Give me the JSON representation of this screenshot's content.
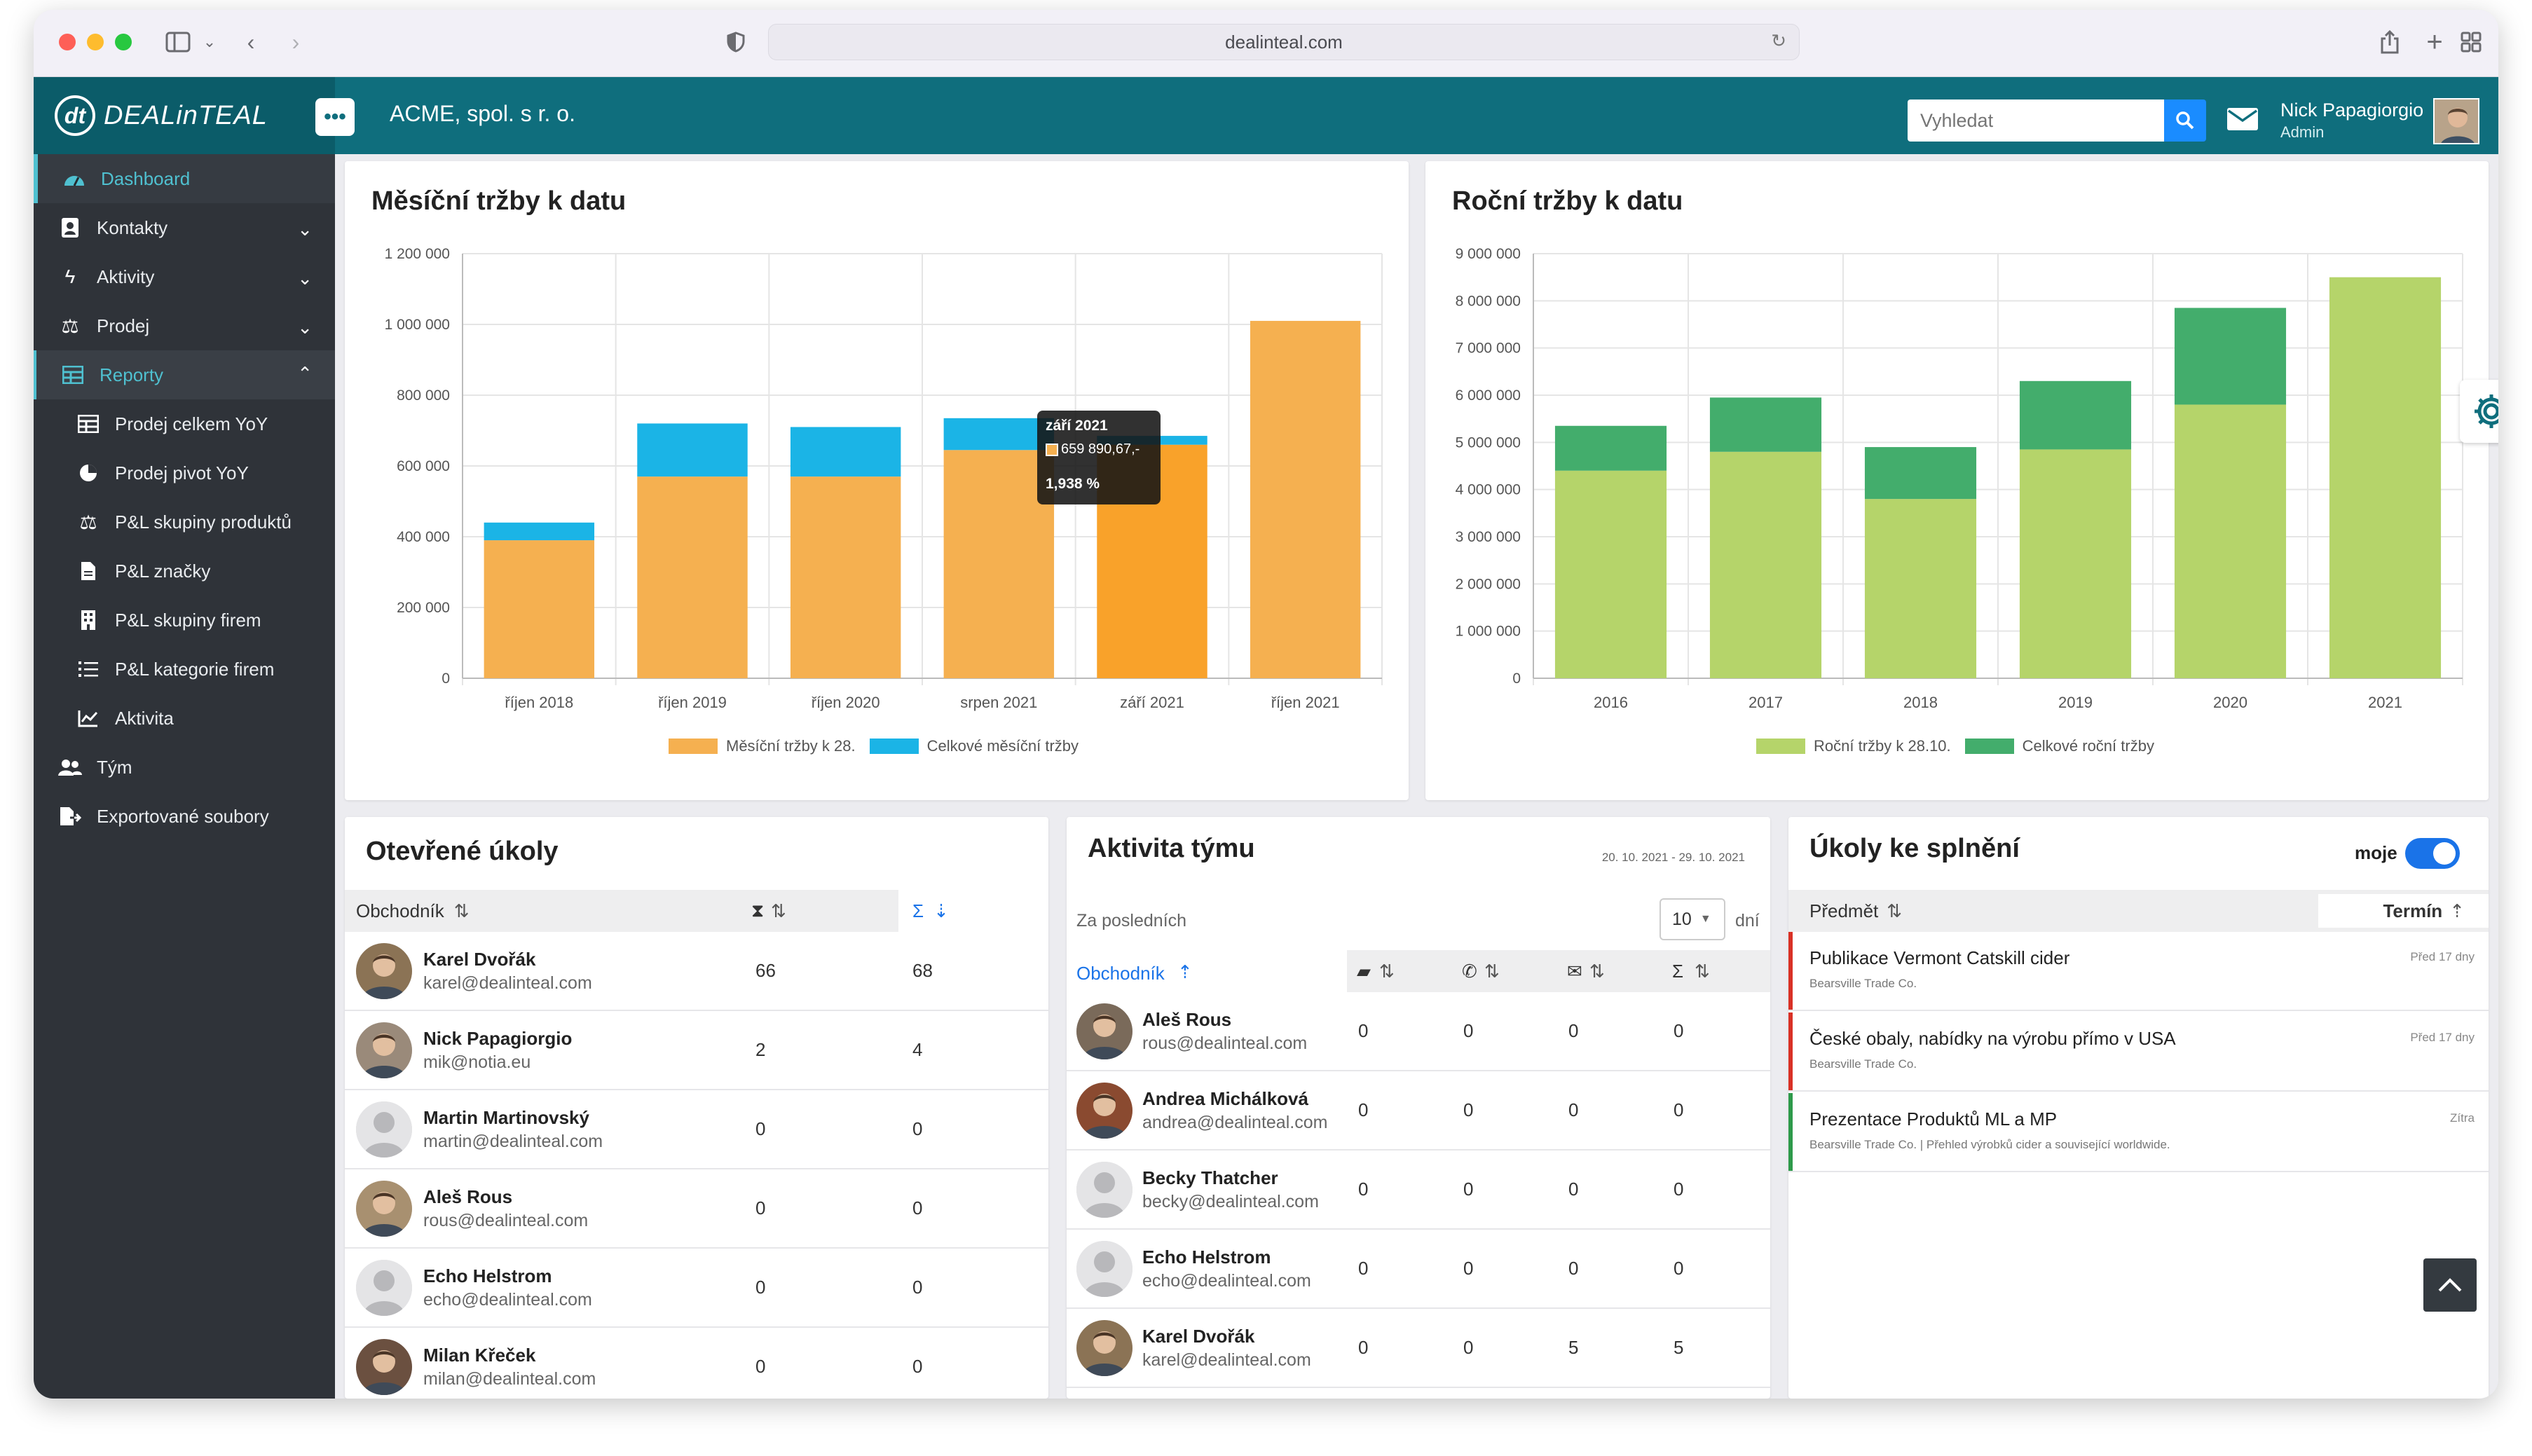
{
  "browser": {
    "url": "dealinteal.com"
  },
  "header": {
    "logo_mark": "dt",
    "logo_text": "DEALinTEAL",
    "menu_label": "•••",
    "company": "ACME, spol. s r. o.",
    "search_placeholder": "Vyhledat",
    "user_name": "Nick Papagiorgio",
    "user_role": "Admin"
  },
  "sidebar": {
    "items": [
      {
        "label": "Dashboard",
        "icon": "dashboard-icon"
      },
      {
        "label": "Kontakty",
        "icon": "contacts-icon"
      },
      {
        "label": "Aktivity",
        "icon": "bolt-icon"
      },
      {
        "label": "Prodej",
        "icon": "scale-icon"
      },
      {
        "label": "Reporty",
        "icon": "table-icon"
      },
      {
        "label": "Prodej celkem YoY",
        "icon": "table-icon"
      },
      {
        "label": "Prodej pivot YoY",
        "icon": "pie-icon"
      },
      {
        "label": "P&L skupiny produktů",
        "icon": "scale-icon"
      },
      {
        "label": "P&L značky",
        "icon": "document-icon"
      },
      {
        "label": "P&L skupiny firem",
        "icon": "building-icon"
      },
      {
        "label": "P&L kategorie firem",
        "icon": "list-icon"
      },
      {
        "label": "Aktivita",
        "icon": "line-chart-icon"
      },
      {
        "label": "Tým",
        "icon": "team-icon"
      },
      {
        "label": "Exportované soubory",
        "icon": "export-icon"
      }
    ]
  },
  "monthly": {
    "title": "Měsíční tržby k datu",
    "tooltip": {
      "title": "září 2021",
      "line1": "659 890,67,-",
      "line2": "1,938 %"
    }
  },
  "yearly": {
    "title": "Roční tržby k datu"
  },
  "chart_data": [
    {
      "type": "bar",
      "stacked": true,
      "title": "Měsíční tržby k datu",
      "categories": [
        "říjen 2018",
        "říjen 2019",
        "říjen 2020",
        "srpen 2021",
        "září 2021",
        "říjen 2021"
      ],
      "series": [
        {
          "name": "Měsíční tržby k 28.",
          "color": "#f5b050",
          "values": [
            390000,
            570000,
            570000,
            645000,
            660000,
            1010000
          ]
        },
        {
          "name": "Celkové měsíční tržby",
          "color": "#1bb4e6",
          "values": [
            50000,
            150000,
            140000,
            90000,
            25000,
            0
          ]
        }
      ],
      "yticks": [
        "0",
        "200 000",
        "400 000",
        "600 000",
        "800 000",
        "1 000 000",
        "1 200 000"
      ],
      "ylim": [
        0,
        1200000
      ],
      "grid": true,
      "legend": "bottom"
    },
    {
      "type": "bar",
      "stacked": true,
      "title": "Roční tržby k datu",
      "categories": [
        "2016",
        "2017",
        "2018",
        "2019",
        "2020",
        "2021"
      ],
      "series": [
        {
          "name": "Roční tržby k 28.10.",
          "color": "#b5d46a",
          "values": [
            4400000,
            4800000,
            3800000,
            4850000,
            5800000,
            8500000
          ]
        },
        {
          "name": "Celkové roční tržby",
          "color": "#43ad6c",
          "values": [
            950000,
            1150000,
            1100000,
            1450000,
            2050000,
            0
          ]
        }
      ],
      "yticks": [
        "0",
        "1 000 000",
        "2 000 000",
        "3 000 000",
        "4 000 000",
        "5 000 000",
        "6 000 000",
        "7 000 000",
        "8 000 000",
        "9 000 000"
      ],
      "ylim": [
        0,
        9000000
      ],
      "grid": true,
      "legend": "bottom"
    }
  ],
  "open_tasks": {
    "title": "Otevřené úkoly",
    "col_sales": "Obchodník",
    "col_sum": "Σ",
    "rows": [
      {
        "name": "Karel Dvořák",
        "email": "karel@dealinteal.com",
        "a": "66",
        "b": "68"
      },
      {
        "name": "Nick Papagiorgio",
        "email": "mik@notia.eu",
        "a": "2",
        "b": "4"
      },
      {
        "name": "Martin Martinovský",
        "email": "martin@dealinteal.com",
        "a": "0",
        "b": "0"
      },
      {
        "name": "Aleš Rous",
        "email": "rous@dealinteal.com",
        "a": "0",
        "b": "0"
      },
      {
        "name": "Echo Helstrom",
        "email": "echo@dealinteal.com",
        "a": "0",
        "b": "0"
      },
      {
        "name": "Milan Křeček",
        "email": "milan@dealinteal.com",
        "a": "0",
        "b": "0"
      }
    ]
  },
  "team_activity": {
    "title": "Aktivita týmu",
    "range": "20. 10. 2021 - 29. 10. 2021",
    "period_label": "Za posledních",
    "period_value": "10",
    "period_unit": "dní",
    "col_sales": "Obchodník",
    "col_sum": "Σ",
    "rows": [
      {
        "name": "Aleš Rous",
        "email": "rous@dealinteal.com",
        "c1": "0",
        "c2": "0",
        "c3": "0",
        "c4": "0"
      },
      {
        "name": "Andrea Michálková",
        "email": "andrea@dealinteal.com",
        "c1": "0",
        "c2": "0",
        "c3": "0",
        "c4": "0"
      },
      {
        "name": "Becky Thatcher",
        "email": "becky@dealinteal.com",
        "c1": "0",
        "c2": "0",
        "c3": "0",
        "c4": "0"
      },
      {
        "name": "Echo Helstrom",
        "email": "echo@dealinteal.com",
        "c1": "0",
        "c2": "0",
        "c3": "0",
        "c4": "0"
      },
      {
        "name": "Karel Dvořák",
        "email": "karel@dealinteal.com",
        "c1": "0",
        "c2": "0",
        "c3": "5",
        "c4": "5"
      }
    ]
  },
  "due_tasks": {
    "title": "Úkoly ke splnění",
    "toggle_label": "moje",
    "toggle_on": true,
    "col_subject": "Předmět",
    "col_due": "Termín",
    "rows": [
      {
        "subject": "Publikace Vermont Catskill cider",
        "company": "Bearsville Trade Co.",
        "due": "Před 17 dny",
        "color": "#d93025"
      },
      {
        "subject": "České obaly, nabídky na výrobu přímo v USA",
        "company": "Bearsville Trade Co.",
        "due": "Před 17 dny",
        "color": "#d93025"
      },
      {
        "subject": "Prezentace Produktů ML a MP",
        "company": "Bearsville Trade Co. | Přehled výrobků cider a související worldwide.",
        "due": "Zítra",
        "color": "#2e9a4a"
      }
    ]
  }
}
